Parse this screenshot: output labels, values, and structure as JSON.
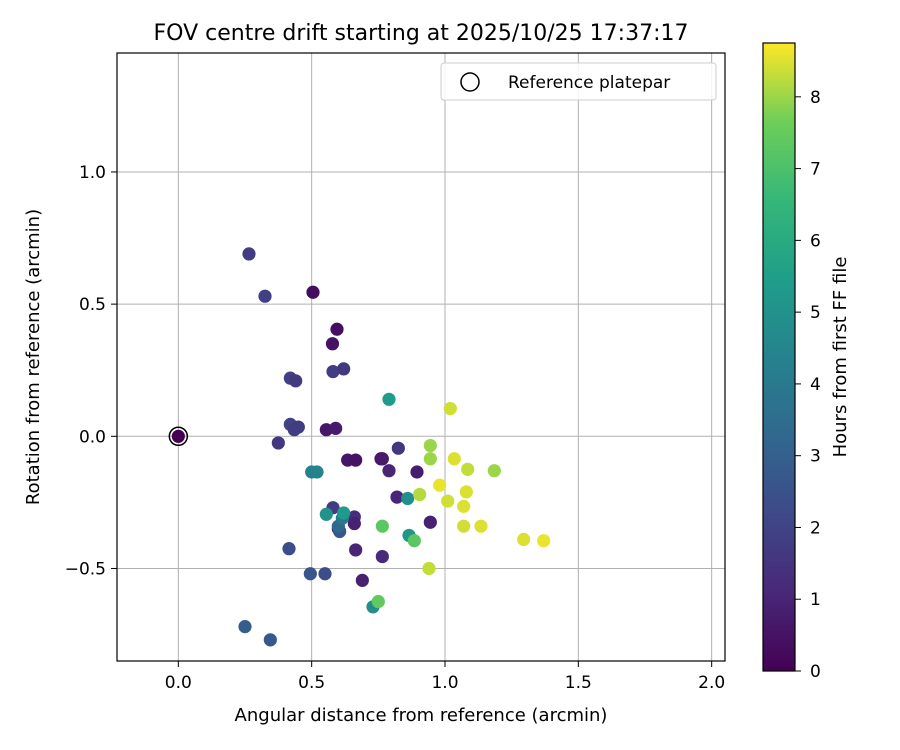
{
  "chart_data": {
    "type": "scatter",
    "title": "FOV centre drift starting at 2025/10/25 17:37:17",
    "xlabel": "Angular distance from reference (arcmin)",
    "ylabel": "Rotation from reference (arcmin)",
    "xlim": [
      -0.23,
      2.05
    ],
    "ylim": [
      -0.85,
      1.45
    ],
    "xticks": [
      0.0,
      0.5,
      1.0,
      1.5,
      2.0
    ],
    "xtick_labels": [
      "0.0",
      "0.5",
      "1.0",
      "1.5",
      "2.0"
    ],
    "yticks": [
      -0.5,
      0.0,
      0.5,
      1.0
    ],
    "ytick_labels": [
      "−0.5",
      "0.0",
      "0.5",
      "1.0"
    ],
    "grid": true,
    "legend": {
      "label": "Reference platepar",
      "position": "top-right"
    },
    "reference_point": {
      "x": 0.0,
      "y": 0.0
    },
    "colorbar": {
      "label": "Hours from first FF file",
      "range": [
        0,
        8.75
      ],
      "ticks": [
        0,
        1,
        2,
        3,
        4,
        5,
        6,
        7,
        8
      ],
      "tick_labels": [
        "0",
        "1",
        "2",
        "3",
        "4",
        "5",
        "6",
        "7",
        "8"
      ],
      "colormap": "viridis"
    },
    "points": [
      {
        "x": 0.0,
        "y": 0.0,
        "h": 0.0
      },
      {
        "x": 0.505,
        "y": 0.545,
        "h": 0.3
      },
      {
        "x": 0.595,
        "y": 0.405,
        "h": 0.4
      },
      {
        "x": 0.578,
        "y": 0.35,
        "h": 0.5
      },
      {
        "x": 0.555,
        "y": 0.025,
        "h": 0.6
      },
      {
        "x": 0.59,
        "y": 0.03,
        "h": 0.7
      },
      {
        "x": 0.635,
        "y": -0.09,
        "h": 0.6
      },
      {
        "x": 0.665,
        "y": -0.09,
        "h": 0.5
      },
      {
        "x": 0.76,
        "y": -0.085,
        "h": 0.6
      },
      {
        "x": 0.765,
        "y": -0.085,
        "h": 0.7
      },
      {
        "x": 0.79,
        "y": -0.13,
        "h": 1.0
      },
      {
        "x": 0.895,
        "y": -0.135,
        "h": 0.8
      },
      {
        "x": 0.825,
        "y": -0.045,
        "h": 1.6
      },
      {
        "x": 0.82,
        "y": -0.23,
        "h": 1.0
      },
      {
        "x": 0.66,
        "y": -0.305,
        "h": 1.3
      },
      {
        "x": 0.66,
        "y": -0.33,
        "h": 0.9
      },
      {
        "x": 0.6,
        "y": -0.35,
        "h": 1.0
      },
      {
        "x": 0.665,
        "y": -0.43,
        "h": 1.0
      },
      {
        "x": 0.765,
        "y": -0.455,
        "h": 1.2
      },
      {
        "x": 0.69,
        "y": -0.545,
        "h": 0.9
      },
      {
        "x": 0.945,
        "y": -0.325,
        "h": 0.9
      },
      {
        "x": 0.265,
        "y": 0.69,
        "h": 1.8
      },
      {
        "x": 0.325,
        "y": 0.53,
        "h": 1.9
      },
      {
        "x": 0.42,
        "y": 0.22,
        "h": 1.9
      },
      {
        "x": 0.44,
        "y": 0.21,
        "h": 1.7
      },
      {
        "x": 0.58,
        "y": 0.245,
        "h": 1.8
      },
      {
        "x": 0.62,
        "y": 0.255,
        "h": 1.7
      },
      {
        "x": 0.42,
        "y": 0.045,
        "h": 2.0
      },
      {
        "x": 0.435,
        "y": 0.025,
        "h": 1.8
      },
      {
        "x": 0.45,
        "y": 0.035,
        "h": 1.8
      },
      {
        "x": 0.375,
        "y": -0.025,
        "h": 1.6
      },
      {
        "x": 0.58,
        "y": -0.27,
        "h": 1.8
      },
      {
        "x": 0.605,
        "y": -0.36,
        "h": 2.6
      },
      {
        "x": 0.415,
        "y": -0.425,
        "h": 2.3
      },
      {
        "x": 0.495,
        "y": -0.52,
        "h": 2.6
      },
      {
        "x": 0.55,
        "y": -0.52,
        "h": 2.3
      },
      {
        "x": 0.25,
        "y": -0.72,
        "h": 2.9
      },
      {
        "x": 0.345,
        "y": -0.77,
        "h": 2.7
      },
      {
        "x": 0.5,
        "y": -0.135,
        "h": 4.4
      },
      {
        "x": 0.52,
        "y": -0.135,
        "h": 4.4
      },
      {
        "x": 0.6,
        "y": -0.34,
        "h": 3.3
      },
      {
        "x": 0.615,
        "y": -0.31,
        "h": 3.9
      },
      {
        "x": 0.555,
        "y": -0.295,
        "h": 5.0
      },
      {
        "x": 0.62,
        "y": -0.29,
        "h": 5.3
      },
      {
        "x": 0.73,
        "y": -0.645,
        "h": 4.8
      },
      {
        "x": 0.79,
        "y": 0.14,
        "h": 5.4
      },
      {
        "x": 0.86,
        "y": -0.235,
        "h": 4.9
      },
      {
        "x": 0.865,
        "y": -0.375,
        "h": 5.2
      },
      {
        "x": 0.765,
        "y": -0.34,
        "h": 7.3
      },
      {
        "x": 0.885,
        "y": -0.395,
        "h": 7.3
      },
      {
        "x": 0.75,
        "y": -0.625,
        "h": 7.4
      },
      {
        "x": 0.945,
        "y": -0.035,
        "h": 8.0
      },
      {
        "x": 0.945,
        "y": -0.085,
        "h": 8.0
      },
      {
        "x": 0.905,
        "y": -0.22,
        "h": 8.2
      },
      {
        "x": 0.94,
        "y": -0.5,
        "h": 8.3
      },
      {
        "x": 1.02,
        "y": 0.105,
        "h": 8.4
      },
      {
        "x": 1.035,
        "y": -0.085,
        "h": 8.5
      },
      {
        "x": 0.98,
        "y": -0.185,
        "h": 8.6
      },
      {
        "x": 1.01,
        "y": -0.245,
        "h": 8.4
      },
      {
        "x": 1.085,
        "y": -0.125,
        "h": 8.3
      },
      {
        "x": 1.08,
        "y": -0.21,
        "h": 8.5
      },
      {
        "x": 1.07,
        "y": -0.265,
        "h": 8.5
      },
      {
        "x": 1.07,
        "y": -0.34,
        "h": 8.4
      },
      {
        "x": 1.135,
        "y": -0.34,
        "h": 8.5
      },
      {
        "x": 1.185,
        "y": -0.13,
        "h": 8.0
      },
      {
        "x": 1.295,
        "y": -0.39,
        "h": 8.5
      },
      {
        "x": 1.37,
        "y": -0.395,
        "h": 8.6
      }
    ]
  }
}
